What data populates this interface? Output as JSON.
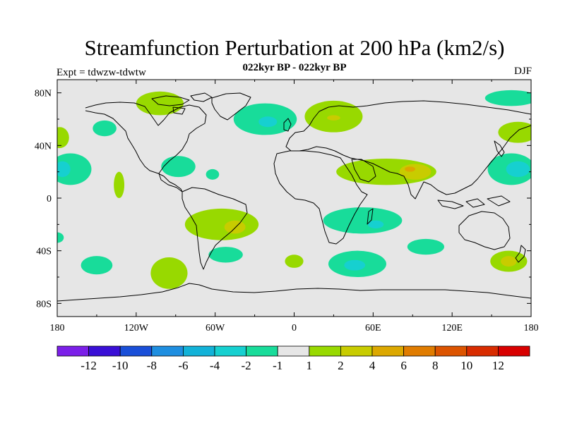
{
  "title": "Streamfunction Perturbation at 200 hPa (km2/s)",
  "subtitle": "022kyr BP - 022kyr BP",
  "left_label": "Expt = tdwzw-tdwtw",
  "right_label": "DJF",
  "map": {
    "projection": "cylindrical-equidistant",
    "lon_range": [
      -180,
      180
    ],
    "lat_range": [
      -90,
      90
    ],
    "background_color": "#e6e6e6",
    "coastline_color": "#000000",
    "lon_ticks": [
      {
        "value": -180,
        "label": "180"
      },
      {
        "value": -120,
        "label": "120W"
      },
      {
        "value": -60,
        "label": "60W"
      },
      {
        "value": 0,
        "label": "0"
      },
      {
        "value": 60,
        "label": "60E"
      },
      {
        "value": 120,
        "label": "120E"
      },
      {
        "value": 180,
        "label": "180"
      }
    ],
    "lat_ticks": [
      {
        "value": 80,
        "label": "80N"
      },
      {
        "value": 40,
        "label": "40N"
      },
      {
        "value": 0,
        "label": "0"
      },
      {
        "value": -40,
        "label": "40S"
      },
      {
        "value": -80,
        "label": "80S"
      }
    ]
  },
  "colorbar": {
    "colors": [
      "#7b1fe8",
      "#3a0fd6",
      "#1a4fd8",
      "#1e8ee0",
      "#12b2d8",
      "#16d0d0",
      "#18dc9a",
      "#e6e6e6",
      "#98d900",
      "#c8cc00",
      "#dca800",
      "#e07c00",
      "#dc5400",
      "#d82c00",
      "#d80000"
    ],
    "labels": [
      "-12",
      "-10",
      "-8",
      "-6",
      "-4",
      "-2",
      "-1",
      "1",
      "2",
      "4",
      "6",
      "8",
      "10",
      "12"
    ]
  },
  "anomalies": [
    {
      "id": "pos-n-canada",
      "sign": "positive",
      "lon": -102,
      "lat": 72,
      "rx": 18,
      "ry": 9,
      "color": "#98d900"
    },
    {
      "id": "neg-n-atlantic",
      "sign": "negative",
      "lon": -22,
      "lat": 60,
      "rx": 24,
      "ry": 12,
      "color": "#18dc9a"
    },
    {
      "id": "neg-n-atlantic-core",
      "sign": "negative",
      "lon": -20,
      "lat": 58,
      "rx": 7,
      "ry": 4,
      "color": "#16d0d0"
    },
    {
      "id": "pos-scandinavia",
      "sign": "positive",
      "lon": 30,
      "lat": 62,
      "rx": 22,
      "ry": 12,
      "color": "#98d900"
    },
    {
      "id": "pos-scandinavia-core",
      "sign": "positive",
      "lon": 30,
      "lat": 61,
      "rx": 5,
      "ry": 2,
      "color": "#c8cc00"
    },
    {
      "id": "neg-arctic-siberia",
      "sign": "negative",
      "lon": 165,
      "lat": 76,
      "rx": 20,
      "ry": 6,
      "color": "#18dc9a"
    },
    {
      "id": "neg-n-pacific",
      "sign": "negative",
      "lon": -144,
      "lat": 53,
      "rx": 9,
      "ry": 6,
      "color": "#18dc9a"
    },
    {
      "id": "pos-n-pacific-west",
      "sign": "positive",
      "lon": -178,
      "lat": 46,
      "rx": 7,
      "ry": 8,
      "color": "#98d900"
    },
    {
      "id": "pos-ne-asia",
      "sign": "positive",
      "lon": 170,
      "lat": 50,
      "rx": 15,
      "ry": 8,
      "color": "#98d900"
    },
    {
      "id": "neg-ne-pacific",
      "sign": "negative",
      "lon": -170,
      "lat": 22,
      "rx": 16,
      "ry": 12,
      "color": "#18dc9a"
    },
    {
      "id": "neg-ne-pacific-core",
      "sign": "negative",
      "lon": -176,
      "lat": 22,
      "rx": 6,
      "ry": 6,
      "color": "#16d0d0"
    },
    {
      "id": "neg-w-pacific",
      "sign": "negative",
      "lon": 165,
      "lat": 22,
      "rx": 18,
      "ry": 12,
      "color": "#18dc9a"
    },
    {
      "id": "neg-w-pacific-core",
      "sign": "negative",
      "lon": 170,
      "lat": 22,
      "rx": 9,
      "ry": 6,
      "color": "#16d0d0"
    },
    {
      "id": "pos-e-pacific",
      "sign": "positive",
      "lon": -133,
      "lat": 10,
      "rx": 4,
      "ry": 10,
      "color": "#98d900"
    },
    {
      "id": "neg-caribbean",
      "sign": "negative",
      "lon": -88,
      "lat": 24,
      "rx": 13,
      "ry": 8,
      "color": "#18dc9a"
    },
    {
      "id": "neg-w-atlantic",
      "sign": "negative",
      "lon": -62,
      "lat": 18,
      "rx": 5,
      "ry": 4,
      "color": "#18dc9a"
    },
    {
      "id": "pos-arabia-india",
      "sign": "positive",
      "lon": 70,
      "lat": 20,
      "rx": 38,
      "ry": 10,
      "color": "#98d900"
    },
    {
      "id": "pos-india-core",
      "sign": "positive",
      "lon": 92,
      "lat": 20,
      "rx": 12,
      "ry": 6,
      "color": "#c8cc00"
    },
    {
      "id": "pos-india-inner",
      "sign": "positive",
      "lon": 88,
      "lat": 22,
      "rx": 4,
      "ry": 2,
      "color": "#dca800"
    },
    {
      "id": "neg-s-africa",
      "sign": "negative",
      "lon": 52,
      "lat": -17,
      "rx": 30,
      "ry": 10,
      "color": "#18dc9a"
    },
    {
      "id": "neg-s-africa-core",
      "sign": "negative",
      "lon": 62,
      "lat": -20,
      "rx": 6,
      "ry": 3,
      "color": "#16d0d0"
    },
    {
      "id": "pos-s-america",
      "sign": "positive",
      "lon": -55,
      "lat": -20,
      "rx": 28,
      "ry": 12,
      "color": "#98d900"
    },
    {
      "id": "pos-s-america-core",
      "sign": "positive",
      "lon": -45,
      "lat": -22,
      "rx": 8,
      "ry": 5,
      "color": "#c8cc00"
    },
    {
      "id": "neg-s-atlantic",
      "sign": "negative",
      "lon": -52,
      "lat": -43,
      "rx": 13,
      "ry": 6,
      "color": "#18dc9a"
    },
    {
      "id": "neg-s-indian",
      "sign": "negative",
      "lon": 48,
      "lat": -50,
      "rx": 22,
      "ry": 10,
      "color": "#18dc9a"
    },
    {
      "id": "neg-s-indian-core",
      "sign": "negative",
      "lon": 46,
      "lat": -51,
      "rx": 8,
      "ry": 4,
      "color": "#16d0d0"
    },
    {
      "id": "pos-s-indian-west",
      "sign": "positive",
      "lon": 0,
      "lat": -48,
      "rx": 7,
      "ry": 5,
      "color": "#98d900"
    },
    {
      "id": "neg-s-indian-east",
      "sign": "negative",
      "lon": 100,
      "lat": -37,
      "rx": 14,
      "ry": 6,
      "color": "#18dc9a"
    },
    {
      "id": "pos-s-pacific-nz",
      "sign": "positive",
      "lon": 163,
      "lat": -48,
      "rx": 14,
      "ry": 8,
      "color": "#98d900"
    },
    {
      "id": "pos-s-pacific-nz-core",
      "sign": "positive",
      "lon": 163,
      "lat": -48,
      "rx": 6,
      "ry": 4,
      "color": "#c8cc00"
    },
    {
      "id": "neg-s-pacific",
      "sign": "negative",
      "lon": -150,
      "lat": -51,
      "rx": 12,
      "ry": 7,
      "color": "#18dc9a"
    },
    {
      "id": "pos-s-pacific-east",
      "sign": "positive",
      "lon": -95,
      "lat": -57,
      "rx": 14,
      "ry": 12,
      "color": "#98d900"
    },
    {
      "id": "neg-pacific-edge",
      "sign": "negative",
      "lon": -180,
      "lat": -30,
      "rx": 5,
      "ry": 4,
      "color": "#18dc9a"
    }
  ]
}
